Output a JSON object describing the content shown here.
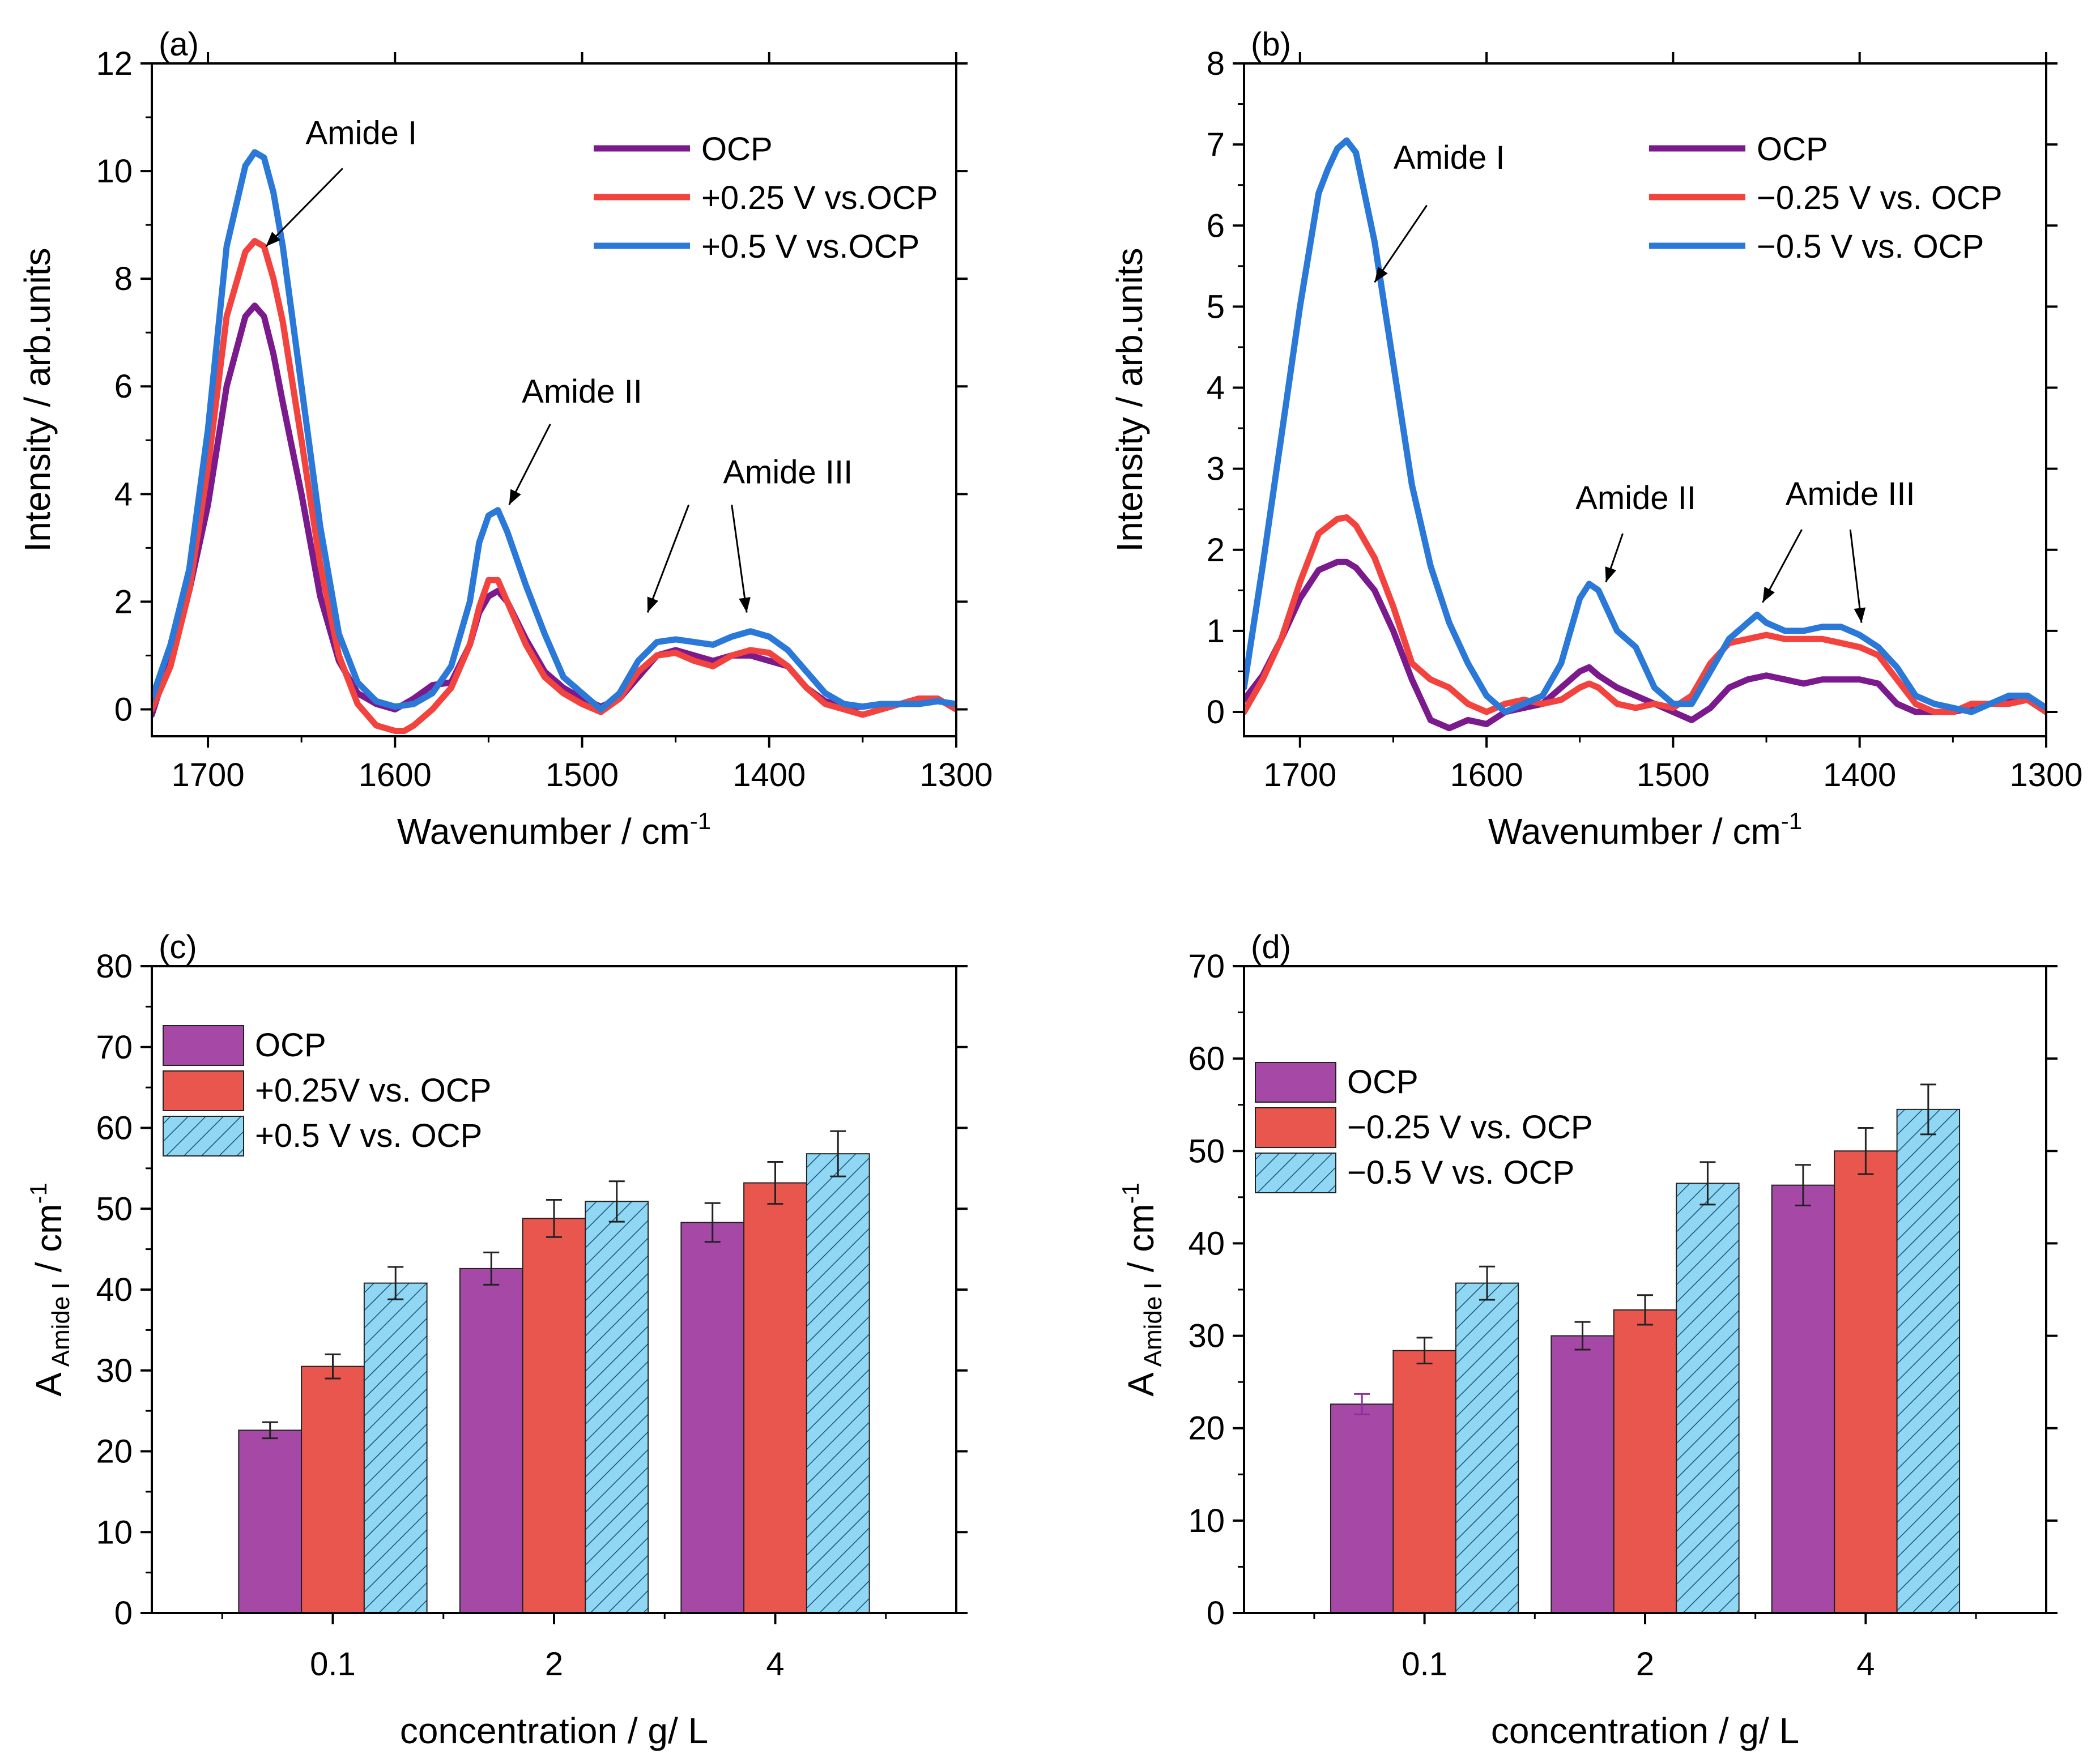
{
  "colors": {
    "ocp": "#7b1a8c",
    "mid": "#f2433f",
    "high": "#2a78d8",
    "bar_ocp": "#a548a6",
    "bar_mid": "#e8564e",
    "bar_high": "#8fd7f2",
    "hatch": "#1d4e7a"
  },
  "chart_data": [
    {
      "id": "a",
      "type": "line",
      "panel_label": "(a)",
      "xlabel": "Wavenumber / cm",
      "xlabel_sup": "-1",
      "ylabel": "Intensity / arb.units",
      "xlim": [
        1730,
        1300
      ],
      "ylim": [
        -0.5,
        12
      ],
      "xticks": [
        1700,
        1600,
        1500,
        1400,
        1300
      ],
      "yticks": [
        0,
        2,
        4,
        6,
        8,
        10,
        12
      ],
      "legend": [
        "OCP",
        "+0.25 V vs.OCP",
        "+0.5 V vs.OCP"
      ],
      "annotations": [
        {
          "text": "Amide I",
          "tx": 1618,
          "ty": 10.5,
          "arrows": [
            {
              "from": [
                1628,
                10.05
              ],
              "to": [
                1669,
                8.6
              ]
            }
          ]
        },
        {
          "text": "Amide II",
          "tx": 1500,
          "ty": 5.7,
          "arrows": [
            {
              "from": [
                1517,
                5.3
              ],
              "to": [
                1539,
                3.8
              ]
            }
          ]
        },
        {
          "text": "Amide III",
          "tx": 1390,
          "ty": 4.2,
          "arrows": [
            {
              "from": [
                1443,
                3.8
              ],
              "to": [
                1465,
                1.8
              ]
            },
            {
              "from": [
                1420,
                3.8
              ],
              "to": [
                1412,
                1.8
              ]
            }
          ]
        }
      ],
      "series": [
        {
          "name": "OCP",
          "x": [
            1730,
            1720,
            1710,
            1700,
            1690,
            1680,
            1675,
            1670,
            1665,
            1660,
            1650,
            1640,
            1630,
            1620,
            1610,
            1600,
            1590,
            1580,
            1570,
            1560,
            1555,
            1550,
            1545,
            1540,
            1530,
            1520,
            1510,
            1500,
            1490,
            1480,
            1470,
            1460,
            1450,
            1440,
            1430,
            1420,
            1410,
            1400,
            1390,
            1380,
            1370,
            1360,
            1350,
            1340,
            1330,
            1320,
            1310,
            1300
          ],
          "y": [
            -0.1,
            1.0,
            2.2,
            3.8,
            6.0,
            7.3,
            7.5,
            7.3,
            6.6,
            5.7,
            4.0,
            2.1,
            0.9,
            0.3,
            0.1,
            0.0,
            0.2,
            0.45,
            0.5,
            1.2,
            1.8,
            2.1,
            2.2,
            2.0,
            1.3,
            0.7,
            0.4,
            0.2,
            0.05,
            0.2,
            0.6,
            1.0,
            1.1,
            1.0,
            0.9,
            1.0,
            1.0,
            0.9,
            0.8,
            0.4,
            0.15,
            0.05,
            0.05,
            0.1,
            0.1,
            0.2,
            0.2,
            0.0
          ]
        },
        {
          "name": "+0.25 V vs.OCP",
          "x": [
            1730,
            1720,
            1710,
            1700,
            1690,
            1680,
            1675,
            1670,
            1665,
            1660,
            1650,
            1640,
            1630,
            1620,
            1610,
            1600,
            1595,
            1590,
            1580,
            1570,
            1560,
            1555,
            1550,
            1545,
            1540,
            1530,
            1520,
            1510,
            1500,
            1490,
            1480,
            1470,
            1460,
            1450,
            1440,
            1430,
            1420,
            1410,
            1400,
            1390,
            1380,
            1370,
            1360,
            1350,
            1340,
            1330,
            1320,
            1310,
            1300
          ],
          "y": [
            0.0,
            0.8,
            2.2,
            4.5,
            7.3,
            8.5,
            8.7,
            8.6,
            8.0,
            7.2,
            5.0,
            2.7,
            1.0,
            0.1,
            -0.3,
            -0.4,
            -0.4,
            -0.3,
            0.0,
            0.4,
            1.2,
            1.9,
            2.4,
            2.4,
            2.0,
            1.2,
            0.6,
            0.3,
            0.1,
            -0.05,
            0.2,
            0.7,
            1.0,
            1.05,
            0.9,
            0.8,
            1.0,
            1.1,
            1.05,
            0.8,
            0.4,
            0.1,
            0.0,
            -0.1,
            0.0,
            0.1,
            0.2,
            0.2,
            0.0
          ]
        },
        {
          "name": "+0.5 V vs.OCP",
          "x": [
            1730,
            1720,
            1710,
            1700,
            1690,
            1680,
            1675,
            1670,
            1665,
            1660,
            1650,
            1640,
            1630,
            1620,
            1610,
            1600,
            1590,
            1580,
            1570,
            1560,
            1555,
            1550,
            1545,
            1540,
            1530,
            1520,
            1510,
            1500,
            1490,
            1480,
            1470,
            1460,
            1450,
            1440,
            1430,
            1420,
            1410,
            1400,
            1390,
            1380,
            1370,
            1360,
            1350,
            1340,
            1330,
            1320,
            1310,
            1300
          ],
          "y": [
            0.2,
            1.2,
            2.6,
            5.2,
            8.6,
            10.1,
            10.35,
            10.25,
            9.6,
            8.6,
            6.0,
            3.4,
            1.4,
            0.5,
            0.15,
            0.05,
            0.1,
            0.3,
            0.8,
            2.0,
            3.1,
            3.6,
            3.7,
            3.3,
            2.3,
            1.4,
            0.6,
            0.3,
            0.0,
            0.3,
            0.9,
            1.25,
            1.3,
            1.25,
            1.2,
            1.35,
            1.45,
            1.35,
            1.1,
            0.7,
            0.3,
            0.1,
            0.05,
            0.1,
            0.1,
            0.1,
            0.15,
            0.1
          ]
        }
      ]
    },
    {
      "id": "b",
      "type": "line",
      "panel_label": "(b)",
      "xlabel": "Wavenumber / cm",
      "xlabel_sup": "-1",
      "ylabel": "Intensity / arb.units",
      "xlim": [
        1730,
        1300
      ],
      "ylim": [
        -0.3,
        8
      ],
      "xticks": [
        1700,
        1600,
        1500,
        1400,
        1300
      ],
      "yticks": [
        0,
        1,
        2,
        3,
        4,
        5,
        6,
        7,
        8
      ],
      "legend": [
        "OCP",
        "−0.25 V vs. OCP",
        "−0.5 V vs. OCP"
      ],
      "annotations": [
        {
          "text": "Amide I",
          "tx": 1620,
          "ty": 6.7,
          "arrows": [
            {
              "from": [
                1632,
                6.25
              ],
              "to": [
                1660,
                5.3
              ]
            }
          ]
        },
        {
          "text": "Amide II",
          "tx": 1520,
          "ty": 2.5,
          "arrows": [
            {
              "from": [
                1527,
                2.2
              ],
              "to": [
                1536,
                1.6
              ]
            }
          ]
        },
        {
          "text": "Amide III",
          "tx": 1405,
          "ty": 2.55,
          "arrows": [
            {
              "from": [
                1431,
                2.25
              ],
              "to": [
                1452,
                1.35
              ]
            },
            {
              "from": [
                1405,
                2.25
              ],
              "to": [
                1399,
                1.1
              ]
            }
          ]
        }
      ],
      "series": [
        {
          "name": "OCP",
          "x": [
            1730,
            1720,
            1710,
            1700,
            1690,
            1680,
            1675,
            1670,
            1660,
            1650,
            1640,
            1630,
            1620,
            1610,
            1600,
            1590,
            1580,
            1570,
            1560,
            1550,
            1545,
            1540,
            1530,
            1520,
            1510,
            1500,
            1490,
            1480,
            1470,
            1460,
            1450,
            1440,
            1430,
            1420,
            1410,
            1400,
            1390,
            1380,
            1370,
            1360,
            1350,
            1340,
            1330,
            1320,
            1310,
            1300
          ],
          "y": [
            0.15,
            0.45,
            0.9,
            1.4,
            1.75,
            1.85,
            1.85,
            1.78,
            1.5,
            1.0,
            0.4,
            -0.1,
            -0.2,
            -0.1,
            -0.15,
            0.0,
            0.05,
            0.1,
            0.3,
            0.5,
            0.55,
            0.45,
            0.3,
            0.2,
            0.1,
            0.0,
            -0.1,
            0.05,
            0.3,
            0.4,
            0.45,
            0.4,
            0.35,
            0.4,
            0.4,
            0.4,
            0.35,
            0.1,
            0.0,
            0.0,
            0.0,
            0.05,
            0.1,
            0.15,
            0.15,
            0.0
          ]
        },
        {
          "name": "−0.25 V vs. OCP",
          "x": [
            1730,
            1720,
            1710,
            1700,
            1690,
            1680,
            1675,
            1670,
            1660,
            1650,
            1640,
            1630,
            1620,
            1610,
            1600,
            1590,
            1580,
            1570,
            1560,
            1550,
            1545,
            1540,
            1530,
            1520,
            1510,
            1500,
            1490,
            1480,
            1470,
            1460,
            1450,
            1440,
            1430,
            1420,
            1410,
            1400,
            1390,
            1380,
            1370,
            1360,
            1350,
            1340,
            1330,
            1320,
            1310,
            1300
          ],
          "y": [
            0.0,
            0.4,
            0.9,
            1.6,
            2.2,
            2.38,
            2.4,
            2.3,
            1.9,
            1.3,
            0.6,
            0.4,
            0.3,
            0.1,
            0.0,
            0.1,
            0.15,
            0.1,
            0.15,
            0.3,
            0.35,
            0.3,
            0.1,
            0.05,
            0.1,
            0.05,
            0.2,
            0.6,
            0.85,
            0.9,
            0.95,
            0.9,
            0.9,
            0.9,
            0.85,
            0.8,
            0.7,
            0.4,
            0.1,
            0.0,
            0.0,
            0.1,
            0.1,
            0.1,
            0.15,
            0.0
          ]
        },
        {
          "name": "−0.5 V vs. OCP",
          "x": [
            1730,
            1720,
            1710,
            1700,
            1690,
            1685,
            1680,
            1675,
            1670,
            1660,
            1650,
            1640,
            1630,
            1620,
            1610,
            1600,
            1590,
            1580,
            1570,
            1560,
            1550,
            1545,
            1540,
            1530,
            1520,
            1510,
            1500,
            1490,
            1480,
            1470,
            1460,
            1455,
            1450,
            1440,
            1430,
            1420,
            1410,
            1400,
            1390,
            1380,
            1370,
            1360,
            1350,
            1340,
            1330,
            1320,
            1310,
            1300
          ],
          "y": [
            0.3,
            1.8,
            3.4,
            5.0,
            6.4,
            6.7,
            6.95,
            7.05,
            6.9,
            5.8,
            4.3,
            2.8,
            1.8,
            1.1,
            0.6,
            0.2,
            0.0,
            0.1,
            0.2,
            0.6,
            1.4,
            1.58,
            1.5,
            1.0,
            0.8,
            0.3,
            0.1,
            0.1,
            0.5,
            0.9,
            1.1,
            1.2,
            1.1,
            1.0,
            1.0,
            1.05,
            1.05,
            0.95,
            0.8,
            0.55,
            0.2,
            0.1,
            0.05,
            0.0,
            0.1,
            0.2,
            0.2,
            0.05
          ]
        }
      ]
    },
    {
      "id": "c",
      "type": "bar",
      "panel_label": "(c)",
      "xlabel": "concentration / g/ L",
      "ylabel_main": "A",
      "ylabel_sub": "Amide I",
      "ylabel_unit": " / cm",
      "ylabel_sup": "-1",
      "ylim": [
        0,
        80
      ],
      "yticks": [
        0,
        10,
        20,
        30,
        40,
        50,
        60,
        70,
        80
      ],
      "categories": [
        "0.1",
        "2",
        "4"
      ],
      "legend": [
        "OCP",
        "+0.25V vs. OCP",
        "+0.5 V vs. OCP"
      ],
      "series": [
        {
          "name": "OCP",
          "values": [
            22.6,
            42.6,
            48.3
          ],
          "errors": [
            1.0,
            2.0,
            2.4
          ]
        },
        {
          "name": "+0.25V vs. OCP",
          "values": [
            30.5,
            48.8,
            53.2
          ],
          "errors": [
            1.5,
            2.3,
            2.6
          ]
        },
        {
          "name": "+0.5 V vs. OCP",
          "values": [
            40.8,
            50.9,
            56.8
          ],
          "errors": [
            2.0,
            2.5,
            2.8
          ]
        }
      ]
    },
    {
      "id": "d",
      "type": "bar",
      "panel_label": "(d)",
      "xlabel": "concentration / g/ L",
      "ylabel_main": "A",
      "ylabel_sub": "Amide I",
      "ylabel_unit": " / cm",
      "ylabel_sup": "-1",
      "ylim": [
        0,
        70
      ],
      "yticks": [
        0,
        10,
        20,
        30,
        40,
        50,
        60,
        70
      ],
      "categories": [
        "0.1",
        "2",
        "4"
      ],
      "legend": [
        "OCP",
        "−0.25 V vs. OCP",
        "−0.5 V vs. OCP"
      ],
      "series": [
        {
          "name": "OCP",
          "values": [
            22.6,
            30.0,
            46.3
          ],
          "errors": [
            1.1,
            1.5,
            2.2
          ]
        },
        {
          "name": "−0.25 V vs. OCP",
          "values": [
            28.4,
            32.8,
            50.0
          ],
          "errors": [
            1.4,
            1.6,
            2.5
          ]
        },
        {
          "name": "−0.5 V vs. OCP",
          "values": [
            35.7,
            46.5,
            54.5
          ],
          "errors": [
            1.8,
            2.3,
            2.7
          ]
        }
      ]
    }
  ]
}
